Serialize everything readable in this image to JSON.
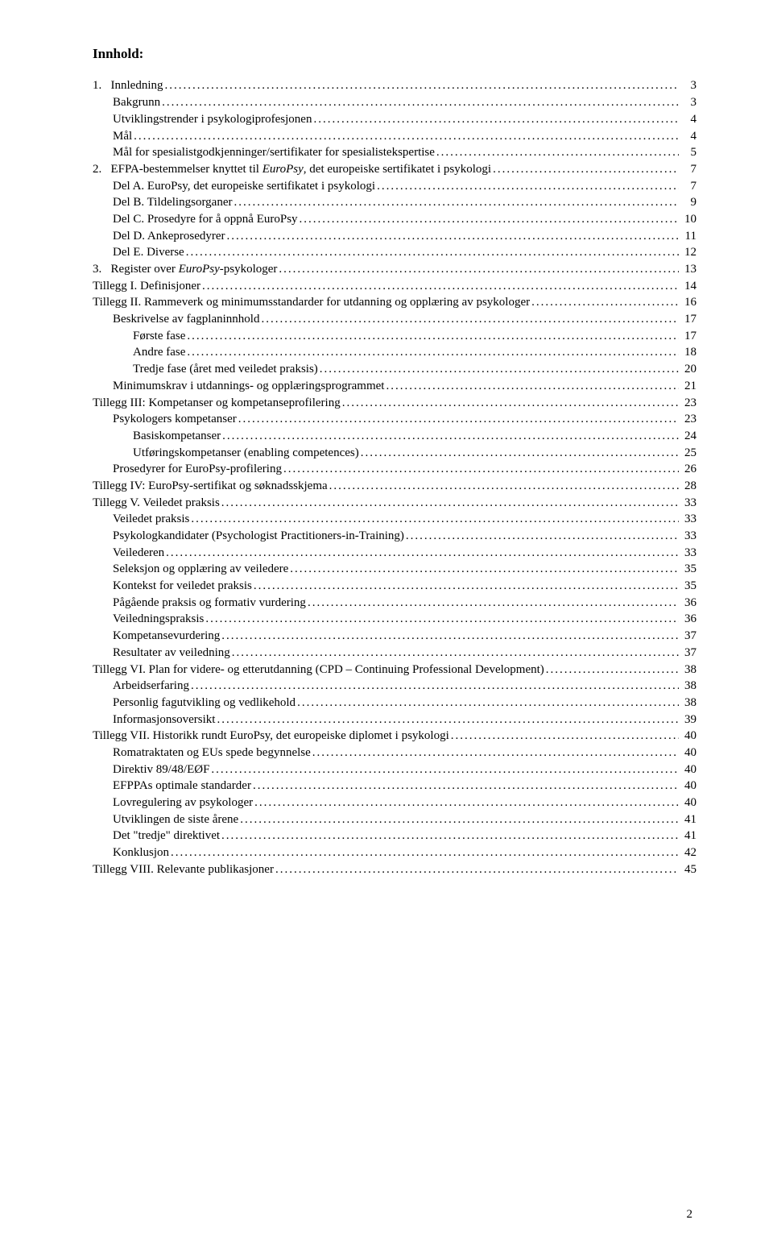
{
  "heading": "Innhold:",
  "pageNumber": "2",
  "toc": [
    {
      "indent": 0,
      "label_pre": "1.",
      "label": "Innledning",
      "page": "3"
    },
    {
      "indent": 1,
      "label": "Bakgrunn",
      "page": "3"
    },
    {
      "indent": 1,
      "label": "Utviklingstrender i psykologiprofesjonen",
      "page": "4"
    },
    {
      "indent": 1,
      "label": "Mål",
      "page": "4"
    },
    {
      "indent": 1,
      "label": "Mål for spesialistgodkjenninger/sertifikater for spesialistekspertise",
      "page": "5"
    },
    {
      "indent": 0,
      "label_pre": "2.",
      "label": "EFPA-bestemmelser knyttet til ",
      "label_italic": "EuroPsy",
      "label_post": ", det europeiske sertifikatet i psykologi",
      "page": "7"
    },
    {
      "indent": 1,
      "label": "Del A. EuroPsy, det europeiske sertifikatet i psykologi",
      "page": "7"
    },
    {
      "indent": 1,
      "label": "Del B. Tildelingsorganer",
      "page": "9"
    },
    {
      "indent": 1,
      "label": "Del C. Prosedyre for å oppnå EuroPsy",
      "page": "10"
    },
    {
      "indent": 1,
      "label": "Del D. Ankeprosedyrer",
      "page": "11"
    },
    {
      "indent": 1,
      "label": "Del E. Diverse",
      "page": "12"
    },
    {
      "indent": 0,
      "label_pre": "3.",
      "label": "Register over ",
      "label_italic": "EuroPsy",
      "label_post": "-psykologer",
      "page": "13"
    },
    {
      "indent": 0,
      "label": "Tillegg I. Definisjoner",
      "page": "14"
    },
    {
      "indent": 0,
      "label": "Tillegg II. Rammeverk og minimumsstandarder for utdanning og opplæring av psykologer",
      "page": "16"
    },
    {
      "indent": 1,
      "label": "Beskrivelse av fagplaninnhold",
      "page": "17"
    },
    {
      "indent": 2,
      "label": "Første fase",
      "page": "17"
    },
    {
      "indent": 2,
      "label": "Andre fase",
      "page": "18"
    },
    {
      "indent": 2,
      "label": "Tredje fase (året med veiledet praksis)",
      "page": "20"
    },
    {
      "indent": 1,
      "label": "Minimumskrav i utdannings- og opplæringsprogrammet",
      "page": "21"
    },
    {
      "indent": 0,
      "label": "Tillegg III: Kompetanser og kompetanseprofilering",
      "page": "23"
    },
    {
      "indent": 1,
      "label": "Psykologers kompetanser",
      "page": "23"
    },
    {
      "indent": 2,
      "label": "Basiskompetanser",
      "page": "24"
    },
    {
      "indent": 2,
      "label": "Utføringskompetanser (enabling competences)",
      "page": "25"
    },
    {
      "indent": 1,
      "label": "Prosedyrer for EuroPsy-profilering",
      "page": "26"
    },
    {
      "indent": 0,
      "label": "Tillegg IV: EuroPsy-sertifikat og søknadsskjema",
      "page": "28"
    },
    {
      "indent": 0,
      "label": "Tillegg V. Veiledet praksis",
      "page": "33"
    },
    {
      "indent": 1,
      "label": "Veiledet praksis",
      "page": "33"
    },
    {
      "indent": 1,
      "label": "Psykologkandidater (Psychologist Practitioners-in-Training)",
      "page": "33"
    },
    {
      "indent": 1,
      "label": "Veilederen",
      "page": "33"
    },
    {
      "indent": 1,
      "label": "Seleksjon og opplæring av veiledere",
      "page": "35"
    },
    {
      "indent": 1,
      "label": "Kontekst for veiledet praksis",
      "page": "35"
    },
    {
      "indent": 1,
      "label": "Pågående praksis og formativ vurdering",
      "page": "36"
    },
    {
      "indent": 1,
      "label": "Veiledningspraksis",
      "page": "36"
    },
    {
      "indent": 1,
      "label": "Kompetansevurdering",
      "page": "37"
    },
    {
      "indent": 1,
      "label": "Resultater av veiledning",
      "page": "37"
    },
    {
      "indent": 0,
      "label": "Tillegg VI. Plan for videre- og etterutdanning (CPD – Continuing Professional Development)",
      "page": "38"
    },
    {
      "indent": 1,
      "label": "Arbeidserfaring",
      "page": "38"
    },
    {
      "indent": 1,
      "label": "Personlig fagutvikling og vedlikehold",
      "page": "38"
    },
    {
      "indent": 1,
      "label": "Informasjonsoversikt",
      "page": "39"
    },
    {
      "indent": 0,
      "label": "Tillegg VII. Historikk rundt EuroPsy, det europeiske diplomet i psykologi",
      "page": "40"
    },
    {
      "indent": 1,
      "label": "Romatraktaten og EUs spede begynnelse",
      "page": "40"
    },
    {
      "indent": 1,
      "label": "Direktiv 89/48/EØF",
      "page": "40"
    },
    {
      "indent": 1,
      "label": "EFPPAs optimale standarder",
      "page": "40"
    },
    {
      "indent": 1,
      "label": "Lovregulering av psykologer",
      "page": "40"
    },
    {
      "indent": 1,
      "label": "Utviklingen de siste årene",
      "page": "41"
    },
    {
      "indent": 1,
      "label": "Det \"tredje\" direktivet",
      "page": "41"
    },
    {
      "indent": 1,
      "label": "Konklusjon",
      "page": "42"
    },
    {
      "indent": 0,
      "label": "Tillegg VIII. Relevante publikasjoner",
      "page": "45"
    }
  ]
}
